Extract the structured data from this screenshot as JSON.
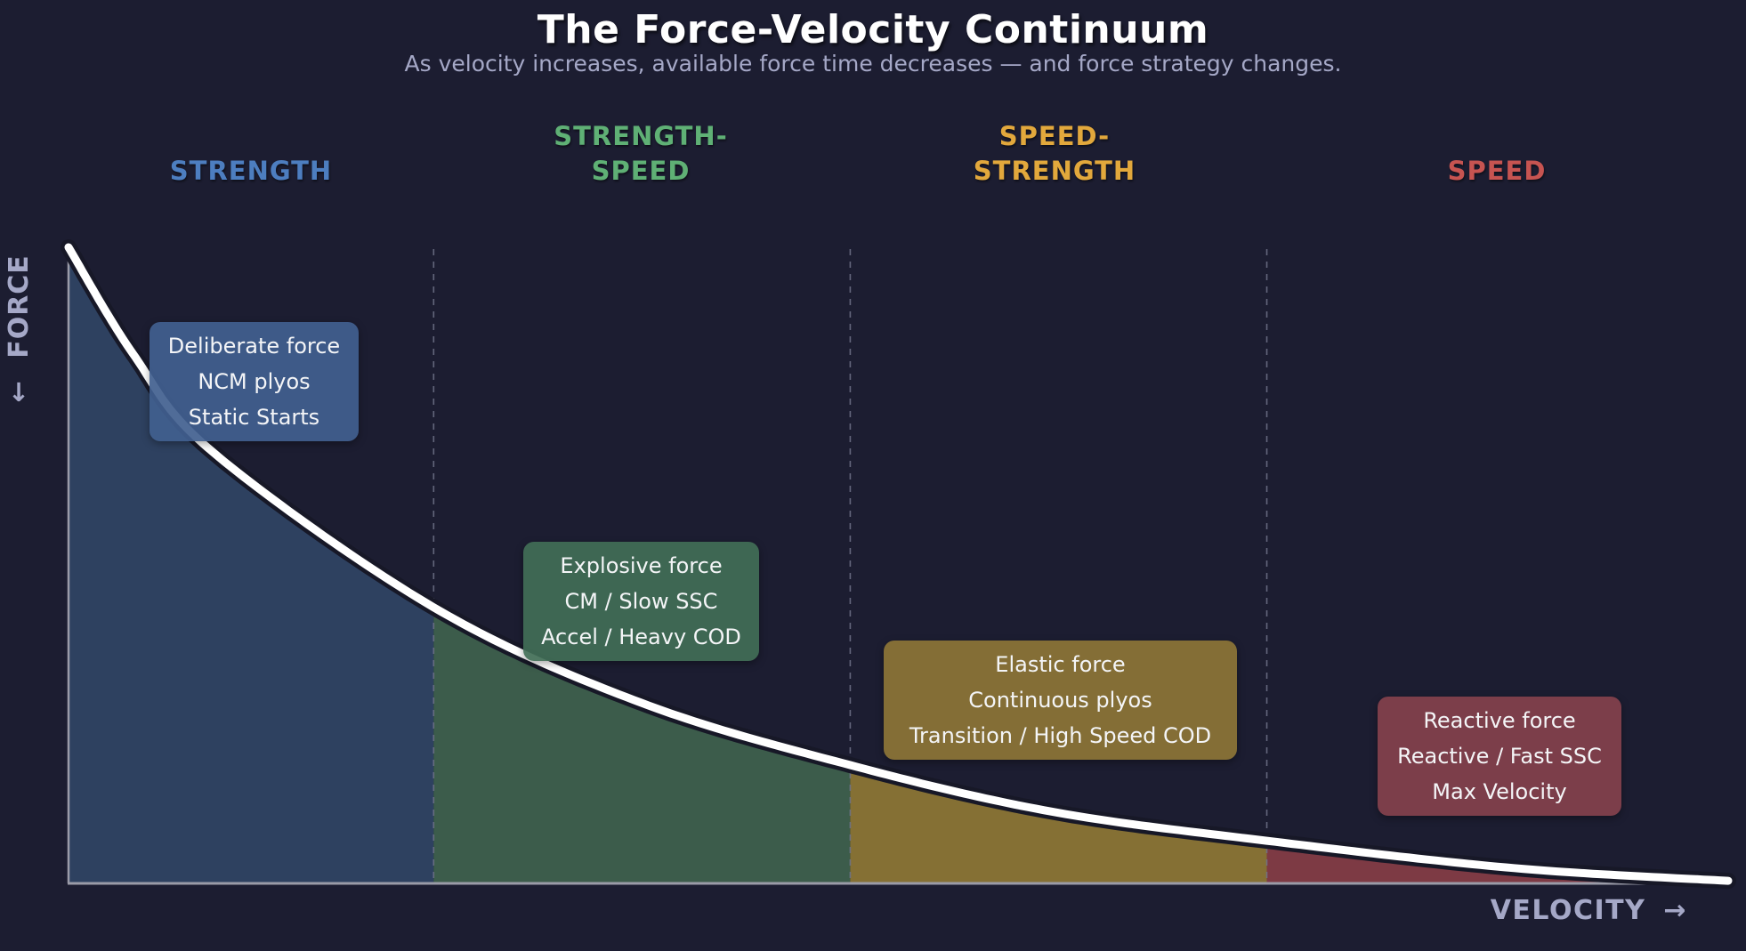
{
  "title": "The Force-Velocity Continuum",
  "subtitle": "As velocity increases, available force time decreases — and force strategy changes.",
  "axes": {
    "y_label": "FORCE",
    "y_arrow": "↓",
    "x_label": "VELOCITY",
    "x_arrow": "→"
  },
  "palette": {
    "background": "#1c1d31",
    "axis_line": "#9a9ba8",
    "separator_line": "#70738a",
    "curve": "#ffffff",
    "curve_shadow": "#171827"
  },
  "zones": [
    {
      "name": "STRENGTH",
      "header_color": "#4d7ec0",
      "fill_color": "#2e4160",
      "box_color": "#41608f",
      "box": {
        "lines": [
          "Deliberate force",
          "NCM plyos",
          "Static Starts"
        ]
      }
    },
    {
      "name": "STRENGTH-SPEED",
      "header_color": "#5fb075",
      "fill_color": "#3c5c4b",
      "box_color": "#416e56",
      "box": {
        "lines": [
          "Explosive force",
          "CM / Slow SSC",
          "Accel / Heavy COD"
        ]
      }
    },
    {
      "name": "SPEED-STRENGTH",
      "header_color": "#e2a83c",
      "fill_color": "#857034",
      "box_color": "#8d7536",
      "box": {
        "lines": [
          "Elastic force",
          "Continuous plyos",
          "Transition / High Speed COD"
        ]
      }
    },
    {
      "name": "SPEED",
      "header_color": "#c75451",
      "fill_color": "#7d3a44",
      "box_color": "#84414c",
      "box": {
        "lines": [
          "Reactive force",
          "Reactive / Fast SSC",
          "Max Velocity"
        ]
      }
    }
  ],
  "chart_data": {
    "type": "area",
    "title": "The Force-Velocity Continuum",
    "xlabel": "VELOCITY",
    "ylabel": "FORCE",
    "x_range": [
      0,
      1
    ],
    "y_range": [
      0,
      1
    ],
    "grid": false,
    "curve_points_velocity_force": [
      [
        0.0,
        1.0
      ],
      [
        0.039,
        0.832
      ],
      [
        0.087,
        0.678
      ],
      [
        0.22,
        0.434
      ],
      [
        0.345,
        0.284
      ],
      [
        0.471,
        0.186
      ],
      [
        0.592,
        0.113
      ],
      [
        0.722,
        0.067
      ],
      [
        0.871,
        0.024
      ],
      [
        1.0,
        0.004
      ]
    ],
    "zone_boundaries_velocity": [
      0.22,
      0.471,
      0.722
    ],
    "zone_names": [
      "STRENGTH",
      "STRENGTH-SPEED",
      "SPEED-STRENGTH",
      "SPEED"
    ]
  }
}
